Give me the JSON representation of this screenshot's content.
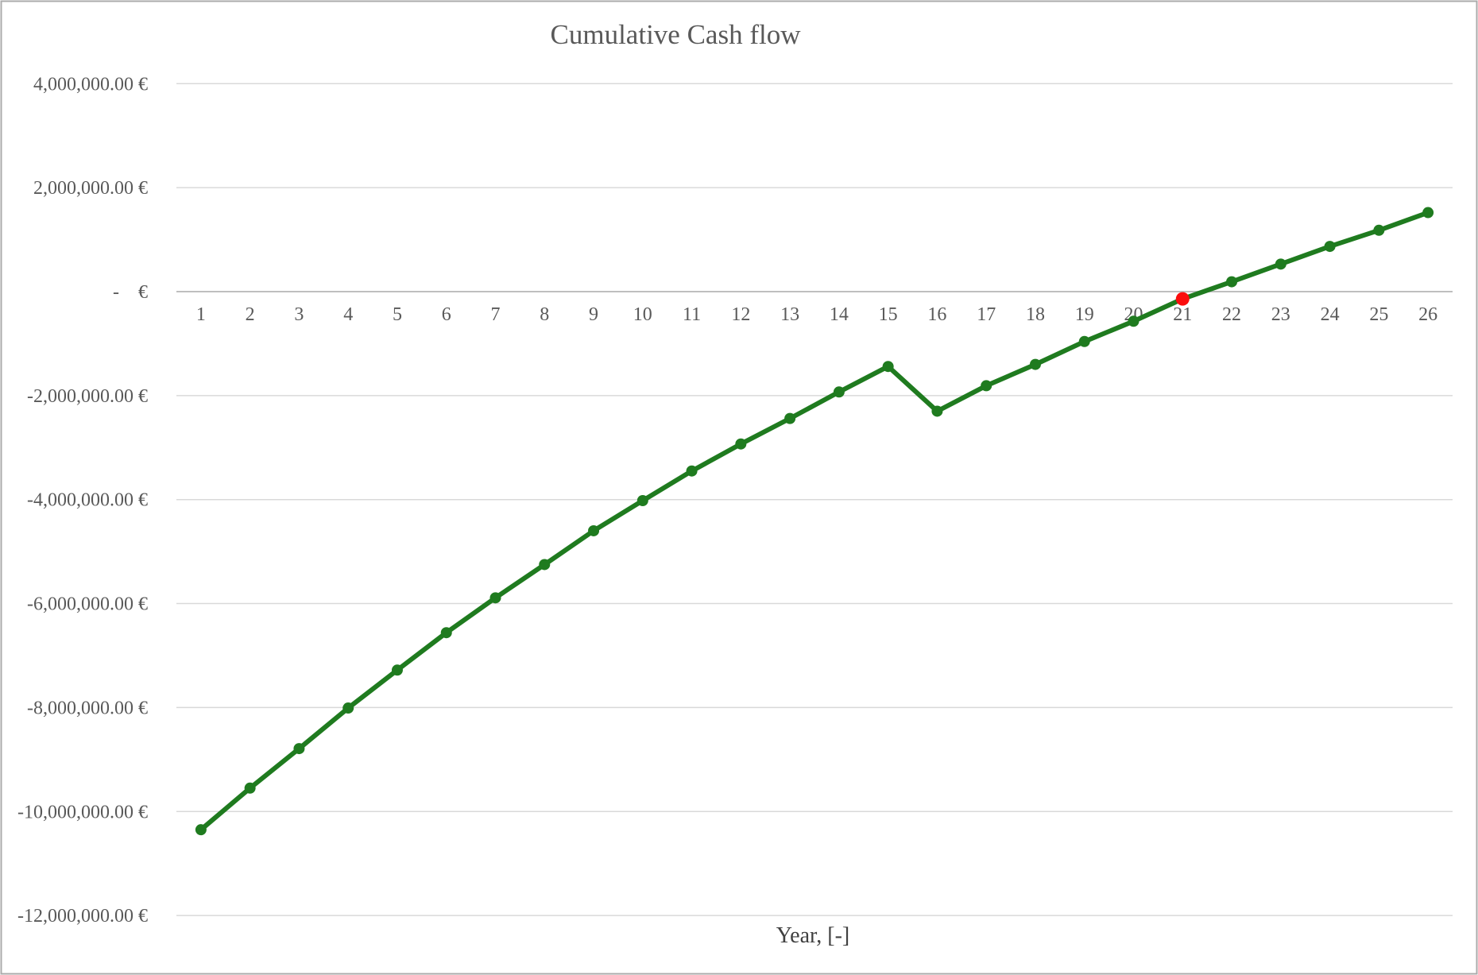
{
  "chart_data": {
    "type": "line",
    "title": "Cumulative Cash flow",
    "xlabel": "Year, [-]",
    "series": [
      {
        "name": "Cumulative Cash flow",
        "x": [
          1,
          2,
          3,
          4,
          5,
          6,
          7,
          8,
          9,
          10,
          11,
          12,
          13,
          14,
          15,
          16,
          17,
          18,
          19,
          20,
          21,
          22,
          23,
          24,
          25,
          26
        ],
        "values": [
          -10350000,
          -9550000,
          -8790000,
          -8010000,
          -7280000,
          -6560000,
          -5890000,
          -5250000,
          -4600000,
          -4020000,
          -3450000,
          -2930000,
          -2440000,
          -1930000,
          -1440000,
          -2300000,
          -1810000,
          -1400000,
          -960000,
          -570000,
          -140000,
          190000,
          530000,
          870000,
          1180000,
          1520000
        ]
      }
    ],
    "x_tick_labels": [
      "1",
      "2",
      "3",
      "4",
      "5",
      "6",
      "7",
      "8",
      "9",
      "10",
      "11",
      "12",
      "13",
      "14",
      "15",
      "16",
      "17",
      "18",
      "19",
      "20",
      "21",
      "22",
      "23",
      "24",
      "25",
      "26"
    ],
    "y_ticks": [
      {
        "value": 4000000,
        "label": "4,000,000.00 €"
      },
      {
        "value": 2000000,
        "label": "2,000,000.00 €"
      },
      {
        "value": 0,
        "label": "-    €"
      },
      {
        "value": -2000000,
        "label": "-2,000,000.00 €"
      },
      {
        "value": -4000000,
        "label": "-4,000,000.00 €"
      },
      {
        "value": -6000000,
        "label": "-6,000,000.00 €"
      },
      {
        "value": -8000000,
        "label": "-8,000,000.00 €"
      },
      {
        "value": -10000000,
        "label": "-10,000,000.00 €"
      },
      {
        "value": -12000000,
        "label": "-12,000,000.00 €"
      }
    ],
    "ylim": [
      -12000000,
      4000000
    ],
    "category_count": 26,
    "grid": true,
    "legend": "none",
    "highlight_point": {
      "x": 21,
      "value": -140000,
      "color": "#FB0D0D"
    },
    "colors": {
      "line": "#1F7B1F",
      "marker": "#1F7B1F",
      "highlight": "#FB0D0D",
      "title_text": "#595959",
      "tick_text": "#595959",
      "axis_title_text": "#404040",
      "gridline": "#D9D9D9",
      "axis_line": "#BFBFBF",
      "background": "#FFFFFF",
      "border": "#ABABAB"
    }
  }
}
